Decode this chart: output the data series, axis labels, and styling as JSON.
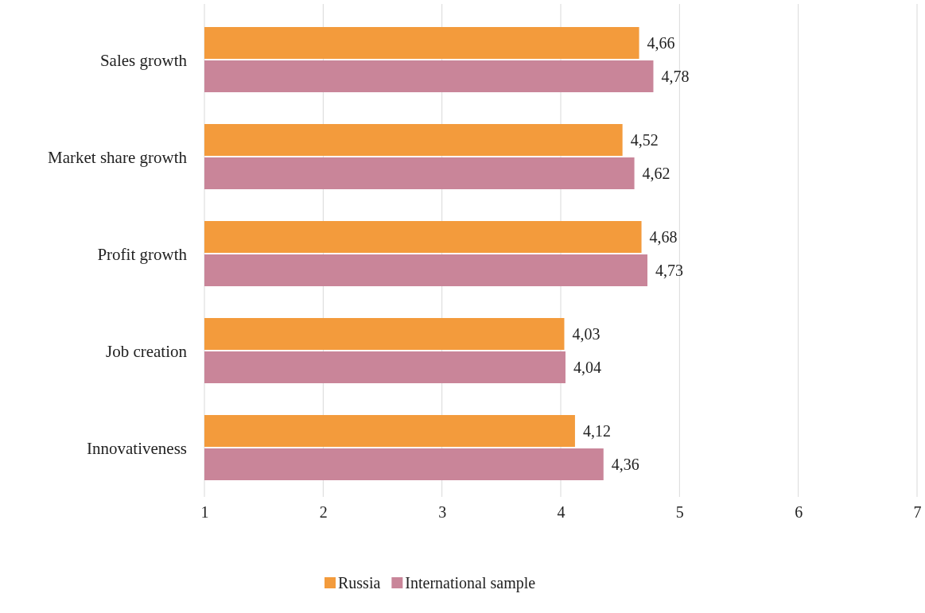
{
  "chart_data": {
    "type": "bar",
    "orientation": "horizontal",
    "categories": [
      "Sales growth",
      "Market share growth",
      "Profit growth",
      "Job creation",
      "Innovativeness"
    ],
    "series": [
      {
        "name": "Russia",
        "color": "#f39b3c",
        "values": [
          4.66,
          4.52,
          4.68,
          4.03,
          4.12
        ],
        "value_labels": [
          "4,66",
          "4,52",
          "4,68",
          "4,03",
          "4,12"
        ]
      },
      {
        "name": "International sample",
        "color": "#c98599",
        "values": [
          4.78,
          4.62,
          4.73,
          4.04,
          4.36
        ],
        "value_labels": [
          "4,78",
          "4,62",
          "4,73",
          "4,04",
          "4,36"
        ]
      }
    ],
    "xlim": [
      1,
      7
    ],
    "xticks": [
      1,
      2,
      3,
      4,
      5,
      6,
      7
    ],
    "grid": "x",
    "legend": "bottom"
  }
}
